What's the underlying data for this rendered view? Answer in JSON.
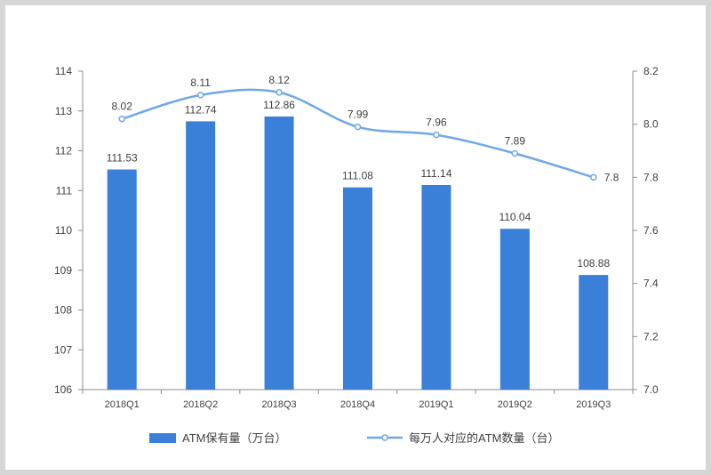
{
  "chart_data": {
    "type": "bar",
    "categories": [
      "2018Q1",
      "2018Q2",
      "2018Q3",
      "2018Q4",
      "2019Q1",
      "2019Q2",
      "2019Q3"
    ],
    "series": [
      {
        "name": "ATM保有量（万台）",
        "type": "bar",
        "axis": "left",
        "color": "#3a7fd8",
        "values": [
          111.53,
          112.74,
          112.86,
          111.08,
          111.14,
          110.04,
          108.88
        ],
        "labels": [
          "111.53",
          "112.74",
          "112.86",
          "111.08",
          "111.14",
          "110.04",
          "108.88"
        ]
      },
      {
        "name": "每万人对应的ATM数量（台）",
        "type": "line",
        "axis": "right",
        "color": "#6fa8e6",
        "values": [
          8.02,
          8.11,
          8.12,
          7.99,
          7.96,
          7.89,
          7.8
        ],
        "labels": [
          "8.02",
          "8.11",
          "8.12",
          "7.99",
          "7.96",
          "7.89",
          "7.8"
        ]
      }
    ],
    "y_left": {
      "ylim": [
        106,
        114
      ],
      "ticks": [
        106,
        107,
        108,
        109,
        110,
        111,
        112,
        113,
        114
      ],
      "tick_labels": [
        "106",
        "107",
        "108",
        "109",
        "110",
        "111",
        "112",
        "113",
        "114"
      ]
    },
    "y_right": {
      "ylim": [
        7.0,
        8.2
      ],
      "ticks": [
        7.0,
        7.2,
        7.4,
        7.6,
        7.8,
        8.0,
        8.2
      ],
      "tick_labels": [
        "7.0",
        "7.2",
        "7.4",
        "7.6",
        "7.8",
        "8.0",
        "8.2"
      ]
    },
    "grid": false,
    "legend": "bottom"
  }
}
